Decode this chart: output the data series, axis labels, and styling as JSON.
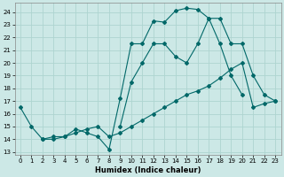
{
  "xlabel": "Humidex (Indice chaleur)",
  "bg_color": "#cce8e6",
  "grid_color": "#aed4d0",
  "line_color": "#006868",
  "xlim": [
    -0.5,
    23.5
  ],
  "ylim": [
    12.8,
    24.7
  ],
  "yticks": [
    13,
    14,
    15,
    16,
    17,
    18,
    19,
    20,
    21,
    22,
    23,
    24
  ],
  "xticks": [
    0,
    1,
    2,
    3,
    4,
    5,
    6,
    7,
    8,
    9,
    10,
    11,
    12,
    13,
    14,
    15,
    16,
    17,
    18,
    19,
    20,
    21,
    22,
    23
  ],
  "line1": [
    [
      0,
      16.5
    ],
    [
      1,
      15.0
    ],
    [
      2,
      14.0
    ],
    [
      3,
      14.0
    ],
    [
      4,
      14.2
    ],
    [
      5,
      14.8
    ],
    [
      6,
      14.5
    ],
    [
      7,
      14.2
    ],
    [
      8,
      13.2
    ],
    [
      9,
      17.2
    ],
    [
      10,
      21.5
    ],
    [
      11,
      21.5
    ],
    [
      12,
      23.3
    ],
    [
      13,
      23.2
    ],
    [
      14,
      24.1
    ],
    [
      15,
      24.3
    ],
    [
      16,
      24.2
    ],
    [
      17,
      23.5
    ],
    [
      18,
      21.5
    ],
    [
      19,
      19.0
    ],
    [
      20,
      17.5
    ]
  ],
  "line2": [
    [
      2,
      14.0
    ],
    [
      3,
      14.2
    ],
    [
      4,
      14.2
    ],
    [
      5,
      14.5
    ],
    [
      6,
      14.8
    ],
    [
      7,
      15.0
    ],
    [
      8,
      14.2
    ],
    [
      9,
      14.5
    ],
    [
      10,
      15.0
    ],
    [
      11,
      15.5
    ],
    [
      12,
      16.0
    ],
    [
      13,
      16.5
    ],
    [
      14,
      17.0
    ],
    [
      15,
      17.5
    ],
    [
      16,
      17.8
    ],
    [
      17,
      18.2
    ],
    [
      18,
      18.8
    ],
    [
      19,
      19.5
    ],
    [
      20,
      20.0
    ],
    [
      21,
      16.5
    ],
    [
      22,
      16.8
    ],
    [
      23,
      17.0
    ]
  ],
  "line3": [
    [
      9,
      15.0
    ],
    [
      10,
      18.5
    ],
    [
      11,
      20.0
    ],
    [
      12,
      21.5
    ],
    [
      13,
      21.5
    ],
    [
      14,
      20.5
    ],
    [
      15,
      20.0
    ],
    [
      16,
      21.5
    ],
    [
      17,
      23.5
    ],
    [
      18,
      23.5
    ],
    [
      19,
      21.5
    ],
    [
      20,
      21.5
    ],
    [
      21,
      19.0
    ],
    [
      22,
      17.5
    ],
    [
      23,
      17.0
    ]
  ]
}
